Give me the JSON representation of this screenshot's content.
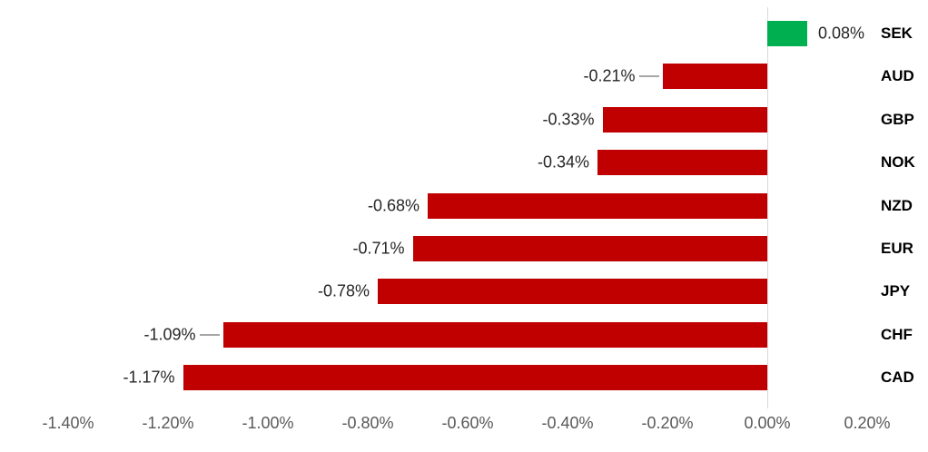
{
  "chart_data": {
    "type": "bar",
    "orientation": "horizontal",
    "title": "",
    "xlabel": "",
    "ylabel": "",
    "value_unit": "percent",
    "xlim": [
      -1.5,
      0.3
    ],
    "grid": false,
    "legend": "none",
    "categories": [
      "SEK",
      "AUD",
      "GBP",
      "NOK",
      "NZD",
      "EUR",
      "JPY",
      "CHF",
      "CAD"
    ],
    "values": [
      0.08,
      -0.21,
      -0.33,
      -0.34,
      -0.68,
      -0.71,
      -0.78,
      -1.09,
      -1.17
    ],
    "items": [
      {
        "currency": "SEK",
        "value": 0.08,
        "label": "0.08%",
        "leader_line": false
      },
      {
        "currency": "AUD",
        "value": -0.21,
        "label": "-0.21%",
        "leader_line": true
      },
      {
        "currency": "GBP",
        "value": -0.33,
        "label": "-0.33%",
        "leader_line": false
      },
      {
        "currency": "NOK",
        "value": -0.34,
        "label": "-0.34%",
        "leader_line": false
      },
      {
        "currency": "NZD",
        "value": -0.68,
        "label": "-0.68%",
        "leader_line": false
      },
      {
        "currency": "EUR",
        "value": -0.71,
        "label": "-0.71%",
        "leader_line": false
      },
      {
        "currency": "JPY",
        "value": -0.78,
        "label": "-0.78%",
        "leader_line": false
      },
      {
        "currency": "CHF",
        "value": -1.09,
        "label": "-1.09%",
        "leader_line": true
      },
      {
        "currency": "CAD",
        "value": -1.17,
        "label": "-1.17%",
        "leader_line": false
      }
    ],
    "x_ticks": [
      {
        "label": "-1.40%",
        "value": -1.4
      },
      {
        "label": "-1.20%",
        "value": -1.2
      },
      {
        "label": "-1.00%",
        "value": -1.0
      },
      {
        "label": "-0.80%",
        "value": -0.8
      },
      {
        "label": "-0.60%",
        "value": -0.6
      },
      {
        "label": "-0.40%",
        "value": -0.4
      },
      {
        "label": "-0.20%",
        "value": -0.2
      },
      {
        "label": "0.00%",
        "value": 0.0
      },
      {
        "label": "0.20%",
        "value": 0.2
      }
    ],
    "colors": {
      "positive_bar": "#00B050",
      "negative_bar": "#C00000",
      "axis_line": "#D9D9D9",
      "tick_label": "#595959",
      "value_label": "#262626",
      "category_label": "#000000",
      "leader_line": "#A6A6A6"
    }
  }
}
